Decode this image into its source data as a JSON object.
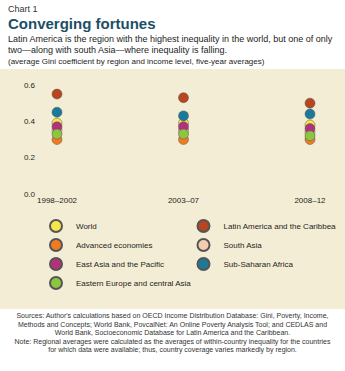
{
  "chart_data": {
    "type": "scatter",
    "chart_label": "Chart 1",
    "title": "Converging fortunes",
    "subtitle": "Latin America is the region with the highest inequality in the world, but one of only two—along with south Asia—where inequality is falling.",
    "ylabel": "(average Gini coefficient by region and income level, five-year averages)",
    "source": "Sources: Author's calculations based on OECD Income Distribution Database: Gini, Poverty, Income, Methods and Concepts; World Bank, PovcalNet: An Online Poverty Analysis Tool; and CEDLAS and World Bank, Socioeconomic Database for Latin America and the Caribbean.",
    "note": "Note: Regional averages were calculated as the averages of within-country inequality for the countries for which data were available; thus, country coverage varies markedly by region.",
    "categories": [
      "1998–2002",
      "2003–07",
      "2008–12"
    ],
    "series": [
      {
        "name": "World",
        "color": "#f7e64a",
        "values": [
          0.39,
          0.39,
          0.38
        ]
      },
      {
        "name": "Latin America and the Caribbean",
        "color": "#b8451e",
        "values": [
          0.55,
          0.53,
          0.5
        ]
      },
      {
        "name": "Advanced economies",
        "color": "#f27b21",
        "values": [
          0.3,
          0.3,
          0.3
        ]
      },
      {
        "name": "South Asia",
        "color": "#f3cdb0",
        "values": [
          0.35,
          0.35,
          0.34
        ]
      },
      {
        "name": "East Asia and the Pacific",
        "color": "#b3317c",
        "values": [
          0.37,
          0.37,
          0.36
        ]
      },
      {
        "name": "Sub-Saharan Africa",
        "color": "#1b7a99",
        "values": [
          0.45,
          0.43,
          0.44
        ]
      },
      {
        "name": "Eastern Europe and central Asia",
        "color": "#8cc63f",
        "values": [
          0.33,
          0.33,
          0.32
        ]
      }
    ],
    "ylim": [
      0,
      0.6
    ],
    "yticks": [
      {
        "value": 0,
        "label": "0.0"
      },
      0.2,
      0.4,
      0.6
    ],
    "grid": false,
    "legend": "bottom",
    "marker": "circle"
  }
}
